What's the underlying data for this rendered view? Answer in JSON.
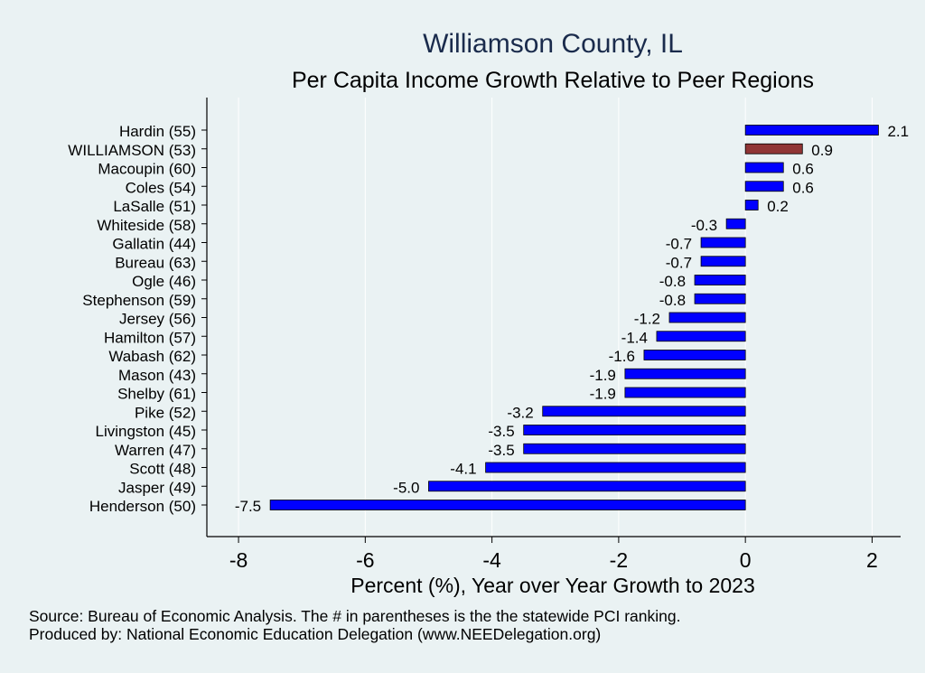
{
  "chart_data": {
    "type": "bar",
    "orientation": "horizontal",
    "title": "Williamson County, IL",
    "subtitle": "Per Capita Income Growth Relative to Peer Regions",
    "xlabel": "Percent (%), Year over Year Growth to 2023",
    "ylabel": "",
    "xlim": [
      -8.5,
      2.45
    ],
    "xticks": [
      -8,
      -6,
      -4,
      -2,
      0,
      2
    ],
    "grid": true,
    "categories": [
      "Hardin (55)",
      "WILLIAMSON (53)",
      "Macoupin (60)",
      "Coles (54)",
      "LaSalle (51)",
      "Whiteside (58)",
      "Gallatin (44)",
      "Bureau (63)",
      "Ogle (46)",
      "Stephenson (59)",
      "Jersey (56)",
      "Hamilton (57)",
      "Wabash (62)",
      "Mason (43)",
      "Shelby (61)",
      "Pike (52)",
      "Livingston (45)",
      "Warren (47)",
      "Scott (48)",
      "Jasper (49)",
      "Henderson (50)"
    ],
    "values": [
      2.1,
      0.9,
      0.6,
      0.6,
      0.2,
      -0.3,
      -0.7,
      -0.7,
      -0.8,
      -0.8,
      -1.2,
      -1.4,
      -1.6,
      -1.9,
      -1.9,
      -3.2,
      -3.5,
      -3.5,
      -4.1,
      -5.0,
      -7.5
    ],
    "value_labels": [
      "2.1",
      "0.9",
      "0.6",
      "0.6",
      "0.2",
      "-0.3",
      "-0.7",
      "-0.7",
      "-0.8",
      "-0.8",
      "-1.2",
      "-1.4",
      "-1.6",
      "-1.9",
      "-1.9",
      "-3.2",
      "-3.5",
      "-3.5",
      "-4.1",
      "-5.0",
      "-7.5"
    ],
    "highlight_index": 1,
    "colors": {
      "bar": "#0000ff",
      "highlight": "#903535",
      "background": "#eaf2f3",
      "grid": "#ffffff",
      "title": "#1a2b4c"
    }
  },
  "footer": {
    "source": "Source: Bureau of Economic Analysis. The # in parentheses is the the statewide PCI ranking.",
    "producer": "Produced by: National Economic Education Delegation (www.NEEDelegation.org)"
  }
}
